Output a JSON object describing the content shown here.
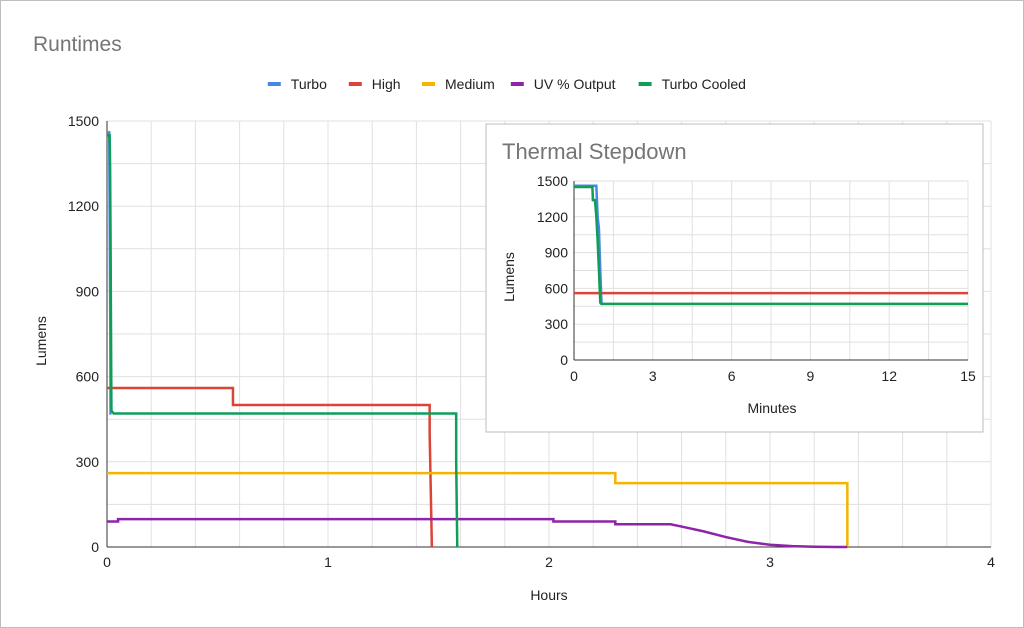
{
  "chart_data": [
    {
      "type": "line",
      "title": "Runtimes",
      "xlabel": "Hours",
      "ylabel": "Lumens",
      "xlim": [
        0,
        4
      ],
      "ylim": [
        0,
        1500
      ],
      "xticks": [
        0,
        1,
        2,
        3,
        4
      ],
      "yticks": [
        0,
        300,
        600,
        900,
        1200,
        1500
      ],
      "grid": true,
      "legend": "top",
      "series": [
        {
          "name": "Turbo",
          "color": "#4a86e8",
          "points": [
            [
              0,
              1460
            ],
            [
              0.01,
              1460
            ],
            [
              0.012,
              1200
            ],
            [
              0.015,
              740
            ],
            [
              0.016,
              470
            ],
            [
              0.02,
              470
            ]
          ]
        },
        {
          "name": "High",
          "color": "#db4437",
          "points": [
            [
              0,
              560
            ],
            [
              0.57,
              560
            ],
            [
              0.57,
              500
            ],
            [
              1.46,
              500
            ],
            [
              1.46,
              400
            ],
            [
              1.47,
              0
            ]
          ]
        },
        {
          "name": "Medium",
          "color": "#f4b400",
          "points": [
            [
              0,
              260
            ],
            [
              2.3,
              260
            ],
            [
              2.3,
              225
            ],
            [
              3.35,
              225
            ],
            [
              3.35,
              0
            ]
          ]
        },
        {
          "name": "UV % Output",
          "color": "#8e24aa",
          "points": [
            [
              0,
              90
            ],
            [
              0.05,
              90
            ],
            [
              0.05,
              98
            ],
            [
              2.02,
              98
            ],
            [
              2.02,
              90
            ],
            [
              2.3,
              90
            ],
            [
              2.3,
              80
            ],
            [
              2.55,
              80
            ],
            [
              2.6,
              72
            ],
            [
              2.7,
              55
            ],
            [
              2.8,
              35
            ],
            [
              2.9,
              18
            ],
            [
              3.0,
              8
            ],
            [
              3.1,
              3
            ],
            [
              3.2,
              1
            ],
            [
              3.3,
              0
            ],
            [
              3.35,
              0
            ]
          ]
        },
        {
          "name": "Turbo Cooled",
          "color": "#0f9d58",
          "points": [
            [
              0,
              1450
            ],
            [
              0.012,
              1450
            ],
            [
              0.014,
              1340
            ],
            [
              0.016,
              1100
            ],
            [
              0.02,
              480
            ],
            [
              0.03,
              470
            ],
            [
              1.58,
              470
            ],
            [
              1.58,
              300
            ],
            [
              1.585,
              0
            ]
          ]
        }
      ]
    },
    {
      "type": "line",
      "title": "Thermal Stepdown",
      "xlabel": "Minutes",
      "ylabel": "Lumens",
      "xlim": [
        0,
        15
      ],
      "ylim": [
        0,
        1500
      ],
      "xticks": [
        0,
        3,
        6,
        9,
        12,
        15
      ],
      "yticks": [
        0,
        300,
        600,
        900,
        1200,
        1500
      ],
      "grid": true,
      "series": [
        {
          "name": "Turbo",
          "color": "#4a86e8",
          "points": [
            [
              0,
              1460
            ],
            [
              0.8,
              1460
            ],
            [
              0.85,
              1460
            ],
            [
              0.9,
              1200
            ],
            [
              0.95,
              1100
            ],
            [
              1.0,
              750
            ],
            [
              1.05,
              470
            ],
            [
              1.1,
              470
            ]
          ]
        },
        {
          "name": "High",
          "color": "#db4437",
          "points": [
            [
              0,
              560
            ],
            [
              15,
              560
            ]
          ]
        },
        {
          "name": "Turbo Cooled",
          "color": "#0f9d58",
          "points": [
            [
              0,
              1450
            ],
            [
              0.7,
              1450
            ],
            [
              0.72,
              1340
            ],
            [
              0.8,
              1340
            ],
            [
              0.85,
              1200
            ],
            [
              0.9,
              1000
            ],
            [
              0.95,
              750
            ],
            [
              1.0,
              480
            ],
            [
              1.05,
              470
            ],
            [
              15,
              470
            ]
          ]
        }
      ]
    }
  ]
}
